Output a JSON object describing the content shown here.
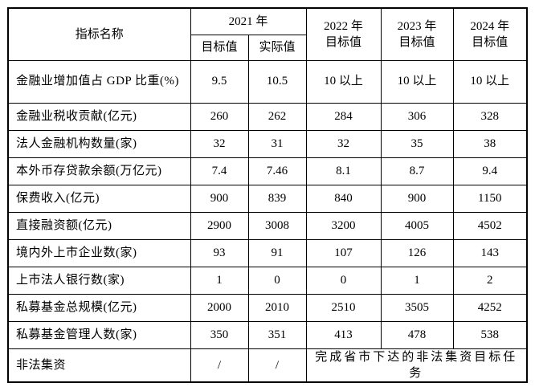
{
  "page": {
    "background": "#ffffff",
    "border_color": "#000000",
    "text_color": "#000000"
  },
  "table": {
    "header": {
      "indicator": "指标名称",
      "col_2021": "2021 年",
      "sub_target": "目标值",
      "sub_actual": "实际值",
      "col_2022": {
        "line1": "2022 年",
        "line2": "目标值"
      },
      "col_2023": {
        "line1": "2023 年",
        "line2": "目标值"
      },
      "col_2024": {
        "line1": "2024 年",
        "line2": "目标值"
      }
    },
    "rows": [
      {
        "label": "金融业增加值占 GDP 比重(%)",
        "cells": [
          "9.5",
          "10.5",
          "10 以上",
          "10 以上",
          "10 以上"
        ]
      },
      {
        "label": "金融业税收贡献(亿元)",
        "cells": [
          "260",
          "262",
          "284",
          "306",
          "328"
        ]
      },
      {
        "label": "法人金融机构数量(家)",
        "cells": [
          "32",
          "31",
          "32",
          "35",
          "38"
        ]
      },
      {
        "label": "本外币存贷款余额(万亿元)",
        "cells": [
          "7.4",
          "7.46",
          "8.1",
          "8.7",
          "9.4"
        ]
      },
      {
        "label": "保费收入(亿元)",
        "cells": [
          "900",
          "839",
          "840",
          "900",
          "1150"
        ]
      },
      {
        "label": "直接融资额(亿元)",
        "cells": [
          "2900",
          "3008",
          "3200",
          "4005",
          "4502"
        ]
      },
      {
        "label": "境内外上市企业数(家)",
        "cells": [
          "93",
          "91",
          "107",
          "126",
          "143"
        ]
      },
      {
        "label": "上市法人银行数(家)",
        "cells": [
          "1",
          "0",
          "0",
          "1",
          "2"
        ]
      },
      {
        "label": "私募基金总规模(亿元)",
        "cells": [
          "2000",
          "2010",
          "2510",
          "3505",
          "4252"
        ]
      },
      {
        "label": "私募基金管理人数(家)",
        "cells": [
          "350",
          "351",
          "413",
          "478",
          "538"
        ]
      }
    ],
    "final_row": {
      "label": "非法集资",
      "target": "/",
      "actual": "/",
      "note": "完成省市下达的非法集资目标任务"
    }
  }
}
